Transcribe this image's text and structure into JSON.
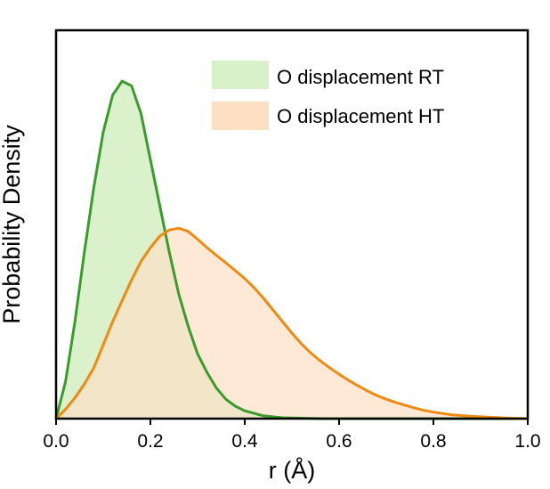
{
  "chart_data": {
    "type": "area",
    "xlabel": "r (Å)",
    "ylabel": "Probability Density",
    "xlim": [
      0,
      1.0
    ],
    "ylim": [
      0,
      8.4
    ],
    "x_ticks": [
      "0.0",
      "0.2",
      "0.4",
      "0.6",
      "0.8",
      "1.0"
    ],
    "y_ticks_shown": false,
    "legend_position": "top-right",
    "series": [
      {
        "name": "O displacement RT",
        "line_color": "#3a9c2c",
        "fill_color": "#d8f0c8",
        "x": [
          0.0,
          0.02,
          0.04,
          0.06,
          0.08,
          0.1,
          0.12,
          0.14,
          0.16,
          0.18,
          0.2,
          0.22,
          0.24,
          0.26,
          0.28,
          0.3,
          0.32,
          0.34,
          0.36,
          0.38,
          0.4,
          0.44,
          0.48,
          0.52,
          0.56,
          0.6,
          0.7,
          0.8,
          1.0
        ],
        "y": [
          0.0,
          0.8,
          2.1,
          3.6,
          5.0,
          6.2,
          7.0,
          7.3,
          7.2,
          6.6,
          5.6,
          4.6,
          3.6,
          2.7,
          2.0,
          1.4,
          1.0,
          0.66,
          0.42,
          0.27,
          0.17,
          0.06,
          0.02,
          0.01,
          0.0,
          0.0,
          0.0,
          0.0,
          0.0
        ]
      },
      {
        "name": "O displacement HT",
        "line_color": "#f08a12",
        "fill_color": "#fde0c4",
        "x": [
          0.0,
          0.02,
          0.04,
          0.06,
          0.08,
          0.1,
          0.12,
          0.14,
          0.16,
          0.18,
          0.2,
          0.22,
          0.24,
          0.26,
          0.28,
          0.3,
          0.32,
          0.34,
          0.36,
          0.38,
          0.4,
          0.42,
          0.44,
          0.46,
          0.48,
          0.5,
          0.52,
          0.54,
          0.56,
          0.58,
          0.6,
          0.62,
          0.64,
          0.66,
          0.68,
          0.7,
          0.72,
          0.74,
          0.76,
          0.78,
          0.8,
          0.84,
          0.88,
          0.92,
          0.96,
          1.0
        ],
        "y": [
          0.0,
          0.2,
          0.45,
          0.75,
          1.1,
          1.6,
          2.1,
          2.55,
          3.0,
          3.4,
          3.7,
          3.95,
          4.08,
          4.12,
          4.05,
          3.88,
          3.7,
          3.53,
          3.37,
          3.2,
          3.03,
          2.83,
          2.6,
          2.35,
          2.1,
          1.85,
          1.62,
          1.42,
          1.25,
          1.1,
          0.96,
          0.83,
          0.71,
          0.6,
          0.5,
          0.42,
          0.35,
          0.29,
          0.23,
          0.18,
          0.14,
          0.08,
          0.05,
          0.03,
          0.01,
          0.0
        ]
      }
    ]
  }
}
